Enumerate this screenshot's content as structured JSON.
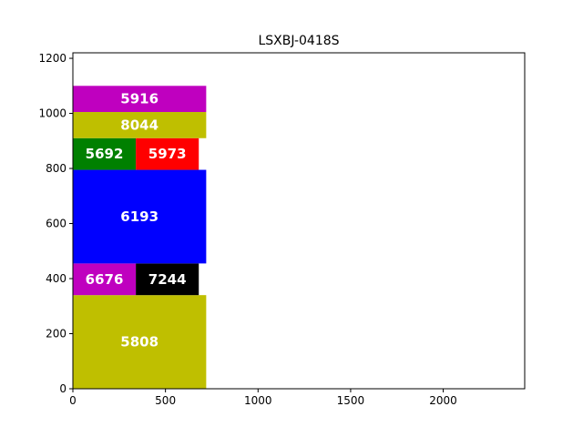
{
  "chart_data": {
    "type": "bar",
    "title": "LSXBJ-0418S",
    "xlabel": "",
    "ylabel": "",
    "xlim": [
      0,
      2440
    ],
    "ylim": [
      0,
      1220
    ],
    "xticks": [
      0,
      500,
      1000,
      1500,
      2000
    ],
    "yticks": [
      0,
      200,
      400,
      600,
      800,
      1000,
      1200
    ],
    "grid": false,
    "legend": "none",
    "rectangles": [
      {
        "label": "5808",
        "x": 0,
        "y": 0,
        "width": 720,
        "height": 340,
        "color": "#bfbf00"
      },
      {
        "label": "6676",
        "x": 0,
        "y": 340,
        "width": 340,
        "height": 115,
        "color": "#bf00bf"
      },
      {
        "label": "7244",
        "x": 340,
        "y": 340,
        "width": 340,
        "height": 115,
        "color": "#000000"
      },
      {
        "label": "6193",
        "x": 0,
        "y": 455,
        "width": 720,
        "height": 340,
        "color": "#0000ff"
      },
      {
        "label": "5692",
        "x": 0,
        "y": 795,
        "width": 340,
        "height": 115,
        "color": "#008000"
      },
      {
        "label": "5973",
        "x": 340,
        "y": 795,
        "width": 340,
        "height": 115,
        "color": "#ff0000"
      },
      {
        "label": "8044",
        "x": 0,
        "y": 910,
        "width": 720,
        "height": 95,
        "color": "#bfbf00"
      },
      {
        "label": "5916",
        "x": 0,
        "y": 1005,
        "width": 720,
        "height": 95,
        "color": "#bf00bf"
      }
    ]
  }
}
